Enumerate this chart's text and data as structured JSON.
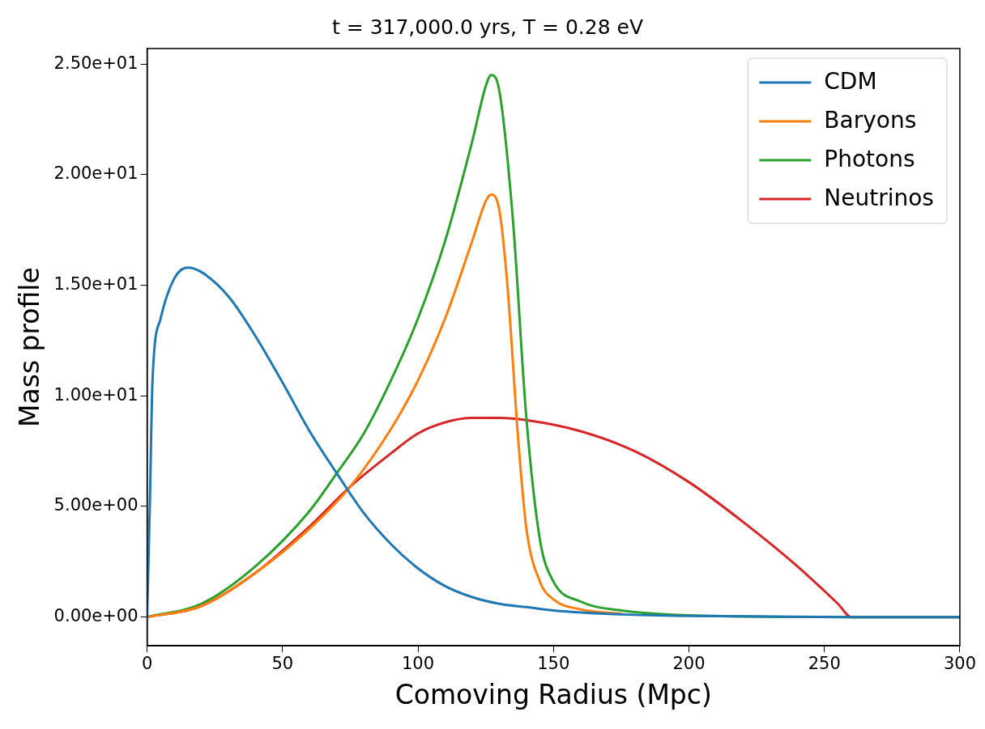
{
  "chart_data": {
    "type": "line",
    "title": "t = 317,000.0 yrs, T = 0.28 eV",
    "xlabel": "Comoving Radius (Mpc)",
    "ylabel": "Mass profile",
    "xlim": [
      0,
      300
    ],
    "xticks": [
      0,
      50,
      100,
      150,
      200,
      250,
      300
    ],
    "ylim": [
      -1.3,
      25.7
    ],
    "yticks": [
      {
        "value": 0,
        "label": "0.00e+00"
      },
      {
        "value": 5,
        "label": "5.00e+00"
      },
      {
        "value": 10,
        "label": "1.00e+01"
      },
      {
        "value": 15,
        "label": "1.50e+01"
      },
      {
        "value": 20,
        "label": "2.00e+01"
      },
      {
        "value": 25,
        "label": "2.50e+01"
      }
    ],
    "grid": false,
    "legend": "top right",
    "marker": "none",
    "line_style": "solid",
    "series": [
      {
        "name": "CDM",
        "color": "#1f77b4",
        "x": [
          0,
          1,
          2,
          5,
          10,
          15,
          20,
          30,
          40,
          50,
          60,
          70,
          80,
          90,
          100,
          110,
          120,
          130,
          140,
          150,
          175,
          200,
          260,
          300
        ],
        "values": [
          0,
          5,
          10.7,
          13.5,
          15.3,
          15.8,
          15.6,
          14.5,
          12.7,
          10.6,
          8.4,
          6.5,
          4.7,
          3.3,
          2.2,
          1.4,
          0.9,
          0.6,
          0.45,
          0.3,
          0.12,
          0.05,
          0,
          0
        ]
      },
      {
        "name": "Baryons",
        "color": "#ff7f0e",
        "x": [
          0,
          20,
          40,
          60,
          75,
          90,
          100,
          110,
          120,
          125,
          127,
          130,
          133,
          137,
          140,
          145,
          150,
          160,
          175
        ],
        "values": [
          0,
          0.5,
          2,
          4,
          5.9,
          8.5,
          10.7,
          13.5,
          17,
          18.8,
          19.1,
          18.4,
          15,
          8,
          4,
          1.6,
          0.8,
          0.35,
          0.15
        ]
      },
      {
        "name": "Photons",
        "color": "#2ca02c",
        "x": [
          0,
          20,
          40,
          60,
          70,
          80,
          90,
          100,
          110,
          120,
          125,
          127,
          130,
          135,
          140,
          145,
          150,
          160,
          175,
          200,
          260,
          300
        ],
        "values": [
          0,
          0.6,
          2.3,
          4.8,
          6.5,
          8.3,
          10.7,
          13.5,
          17,
          21.5,
          24,
          24.5,
          23.8,
          18,
          9,
          3.5,
          1.6,
          0.7,
          0.3,
          0.08,
          0,
          0
        ]
      },
      {
        "name": "Neutrinos",
        "color": "#d62728",
        "x": [
          0,
          20,
          40,
          60,
          75,
          90,
          100,
          110,
          120,
          130,
          140,
          160,
          180,
          200,
          220,
          240,
          255,
          260,
          270,
          300
        ],
        "values": [
          0,
          0.5,
          2,
          4.1,
          5.9,
          7.4,
          8.3,
          8.8,
          9,
          9,
          8.9,
          8.4,
          7.5,
          6.1,
          4.3,
          2.3,
          0.6,
          0,
          0,
          0
        ]
      }
    ]
  }
}
